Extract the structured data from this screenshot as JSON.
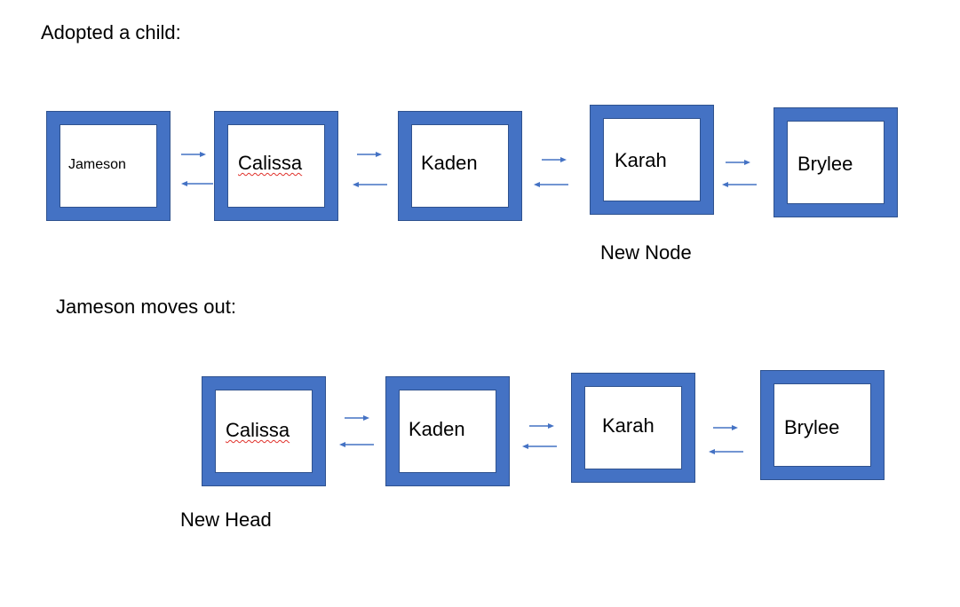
{
  "section1": {
    "heading": "Adopted a child:",
    "nodes": [
      {
        "name": "Jameson"
      },
      {
        "name": "Calissa"
      },
      {
        "name": "Kaden"
      },
      {
        "name": "Karah"
      },
      {
        "name": "Brylee"
      }
    ],
    "caption": "New Node"
  },
  "section2": {
    "heading": "Jameson moves out:",
    "nodes": [
      {
        "name": "Calissa"
      },
      {
        "name": "Kaden"
      },
      {
        "name": "Karah"
      },
      {
        "name": "Brylee"
      }
    ],
    "caption": "New Head"
  },
  "colors": {
    "node_border": "#4472c4",
    "arrow": "#4472c4",
    "spellcheck_underline": "#e0312b"
  }
}
